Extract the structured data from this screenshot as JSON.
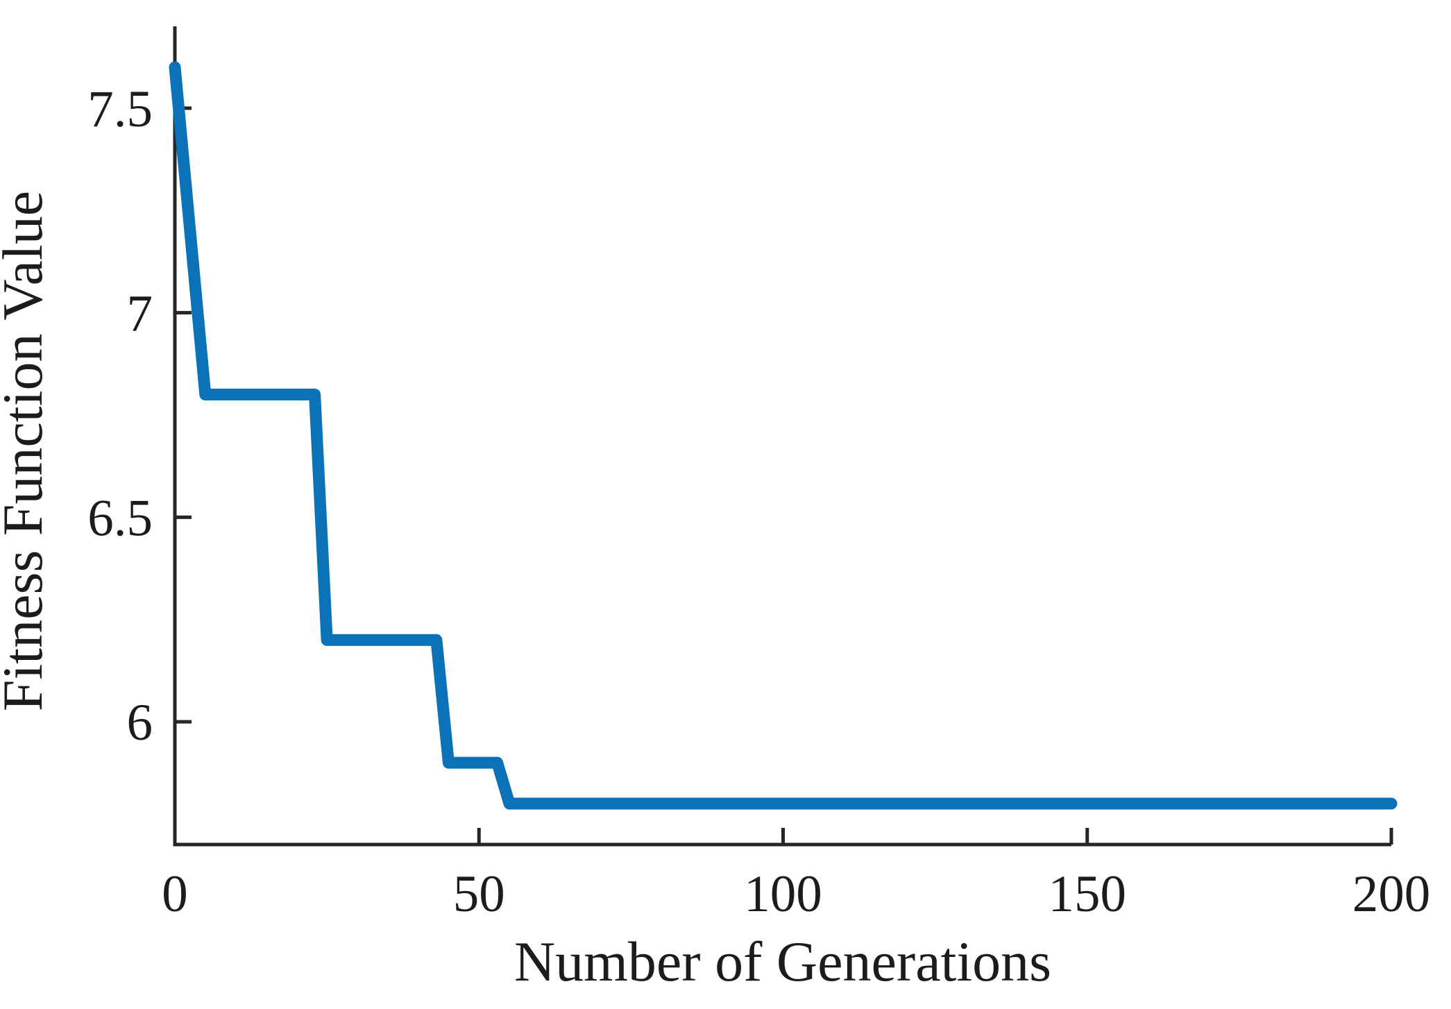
{
  "figure": {
    "background": "#ffffff"
  },
  "chart_data": {
    "type": "line",
    "title": "",
    "xlabel": "Number of Generations",
    "ylabel": "Fitness Function Value",
    "x": [
      0,
      5,
      23,
      25,
      43,
      45,
      53,
      55,
      200
    ],
    "y": [
      7.6,
      6.8,
      6.8,
      6.2,
      6.2,
      5.9,
      5.9,
      5.8,
      5.8
    ],
    "xlim": [
      0,
      200
    ],
    "ylim": [
      5.7,
      7.7
    ],
    "xticks": [
      0,
      50,
      100,
      150,
      200
    ],
    "xtick_labels": [
      "0",
      "50",
      "100",
      "150",
      "200"
    ],
    "yticks": [
      6,
      6.5,
      7,
      7.5
    ],
    "ytick_labels": [
      "6",
      "6.5",
      "7",
      "7.5"
    ],
    "line_color": "#0b72b8",
    "axis_color": "#262626",
    "text_color": "#1c1c1c",
    "grid": false,
    "legend": "none"
  }
}
